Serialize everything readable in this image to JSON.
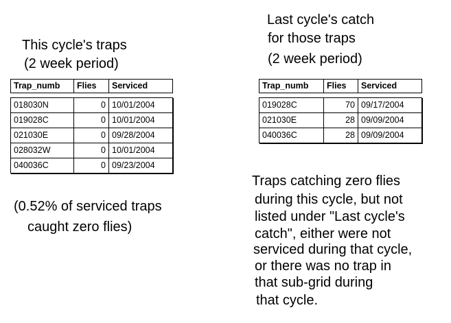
{
  "left": {
    "title": [
      "This cycle's traps",
      "(2 week period)"
    ],
    "table": {
      "columns": [
        "Trap_numb",
        "Flies",
        "Serviced"
      ],
      "rows": [
        [
          "018030N",
          0,
          "10/01/2004"
        ],
        [
          "019028C",
          0,
          "10/01/2004"
        ],
        [
          "021030E",
          0,
          "09/28/2004"
        ],
        [
          "028032W",
          0,
          "10/01/2004"
        ],
        [
          "040036C",
          0,
          "09/23/2004"
        ]
      ]
    },
    "note": [
      "(0.52% of serviced traps",
      "caught zero flies)"
    ]
  },
  "right": {
    "title": [
      "Last cycle's catch",
      "for those traps",
      "(2 week period)"
    ],
    "table": {
      "columns": [
        "Trap_numb",
        "Flies",
        "Serviced"
      ],
      "rows": [
        [
          "019028C",
          70,
          "09/17/2004"
        ],
        [
          "021030E",
          28,
          "09/09/2004"
        ],
        [
          "040036C",
          28,
          "09/09/2004"
        ]
      ]
    },
    "note": [
      "Traps catching zero flies",
      "during this cycle, but not",
      "listed under \"Last cycle's",
      "catch\", either were not",
      "serviced during that cycle,",
      "or there was no trap in",
      "that sub-grid during",
      "that cycle."
    ]
  }
}
